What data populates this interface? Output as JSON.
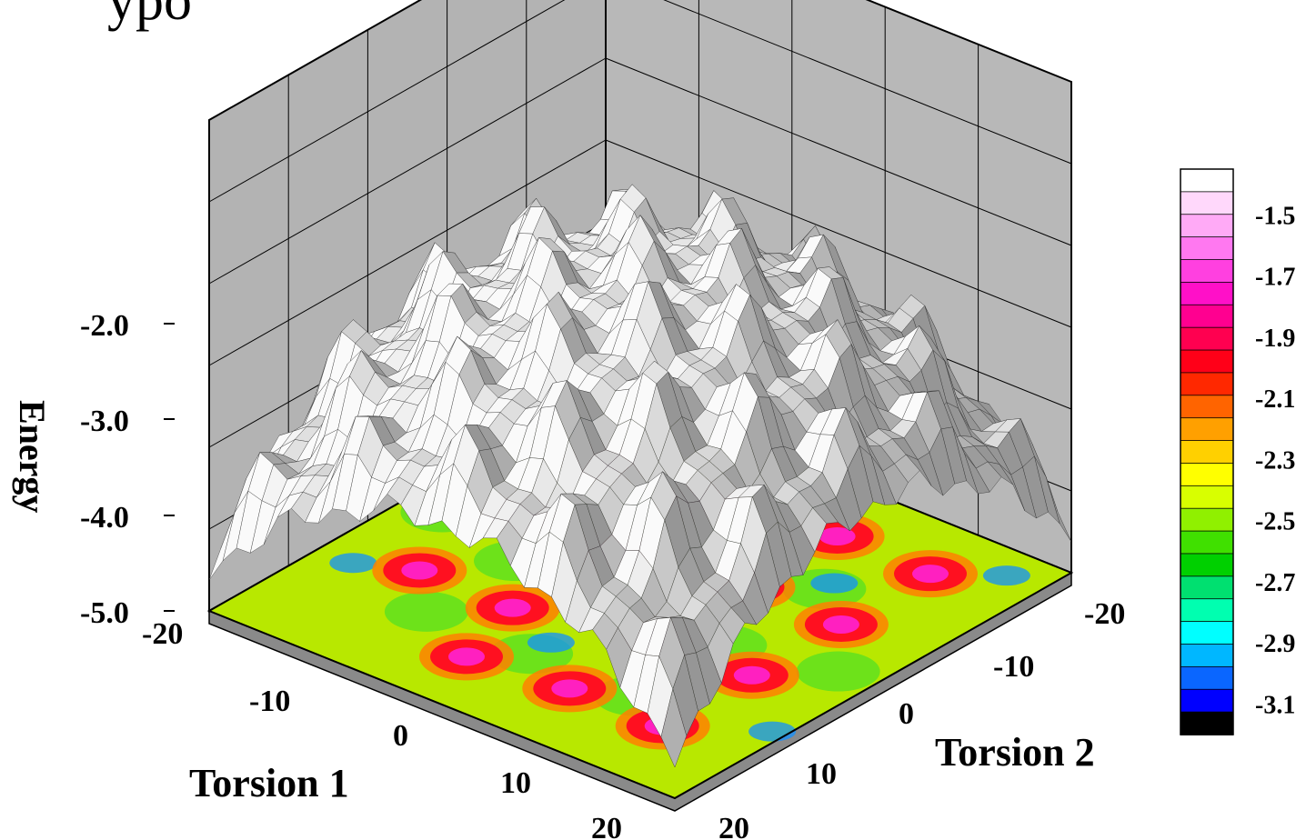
{
  "title_fragment": "ypo",
  "chart_data": {
    "type": "surface3d",
    "title": "",
    "zlabel": "Energy",
    "xlabel": "Torsion 1",
    "ylabel": "Torsion 2",
    "x_ticks": [
      "-20",
      "-10",
      "0",
      "10",
      "20"
    ],
    "y_ticks": [
      "-20",
      "-10",
      "0",
      "10",
      "20"
    ],
    "z_ticks": [
      "-2.0",
      "-3.0",
      "-4.0",
      "-5.0"
    ],
    "x_range": [
      -20,
      20
    ],
    "y_range": [
      -20,
      20
    ],
    "z_range": [
      -5.0,
      -1.4
    ],
    "surface_color": "#f2f2f2",
    "floor_projection": "filled contour map of the energy surface",
    "wall_color": "#b3b3b3",
    "grid": true,
    "minima_on_floor": [
      {
        "x": -13,
        "y": -12
      },
      {
        "x": -13,
        "y": -3
      },
      {
        "x": -13,
        "y": 7
      },
      {
        "x": -5,
        "y": -12
      },
      {
        "x": -5,
        "y": -3
      },
      {
        "x": -5,
        "y": 7
      },
      {
        "x": -3,
        "y": 14
      },
      {
        "x": 5,
        "y": -14
      },
      {
        "x": 5,
        "y": -5
      },
      {
        "x": 5,
        "y": 4
      },
      {
        "x": 5,
        "y": 13
      },
      {
        "x": 13,
        "y": -14
      },
      {
        "x": 13,
        "y": -5
      },
      {
        "x": 13,
        "y": 4
      },
      {
        "x": 13,
        "y": 13
      }
    ],
    "colorbar": {
      "labels": [
        "-1.5",
        "-1.7",
        "-1.9",
        "-2.1",
        "-2.3",
        "-2.5",
        "-2.7",
        "-2.9",
        "-3.1"
      ],
      "min": -3.2,
      "max": -1.35,
      "colors": [
        "#000000",
        "#0000ff",
        "#0a66ff",
        "#00b7ff",
        "#00ffff",
        "#00ffb0",
        "#00e070",
        "#00d000",
        "#40e000",
        "#90f000",
        "#d8ff00",
        "#ffff00",
        "#ffd000",
        "#ffa000",
        "#ff6400",
        "#ff2800",
        "#ff0018",
        "#ff0050",
        "#ff0090",
        "#ff10c8",
        "#ff40e0",
        "#ff78f0",
        "#ffaaf6",
        "#ffd8fb",
        "#ffffff"
      ]
    }
  }
}
